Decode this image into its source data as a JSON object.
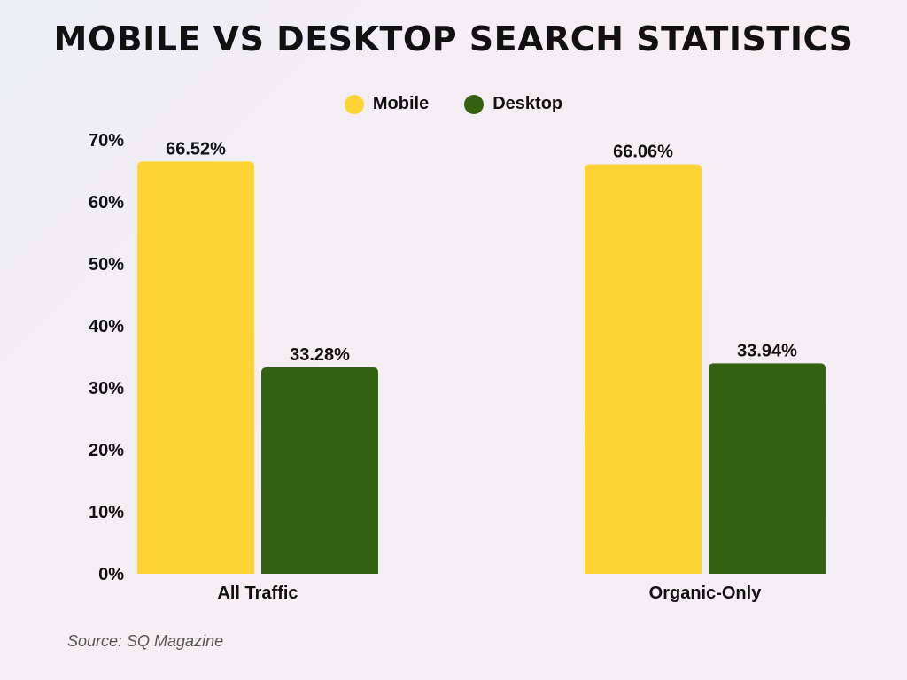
{
  "title": "MOBILE VS DESKTOP SEARCH STATISTICS",
  "source": "Source: SQ Magazine",
  "colors": {
    "mobile": "#fdd434",
    "desktop": "#336311"
  },
  "legend": [
    {
      "label": "Mobile",
      "color": "#fdd434"
    },
    {
      "label": "Desktop",
      "color": "#336311"
    }
  ],
  "chart_data": {
    "type": "bar",
    "categories": [
      "All Traffic",
      "Organic-Only"
    ],
    "series": [
      {
        "name": "Mobile",
        "values": [
          66.52,
          66.06
        ],
        "labels": [
          "66.52%",
          "66.06%"
        ]
      },
      {
        "name": "Desktop",
        "values": [
          33.28,
          33.94
        ],
        "labels": [
          "33.28%",
          "33.94%"
        ]
      }
    ],
    "ylim": [
      0,
      70
    ],
    "yticks": [
      "0%",
      "10%",
      "20%",
      "30%",
      "40%",
      "50%",
      "60%",
      "70%"
    ],
    "ytick_values": [
      0,
      10,
      20,
      30,
      40,
      50,
      60,
      70
    ],
    "grid": false,
    "legend_position": "top-center"
  }
}
